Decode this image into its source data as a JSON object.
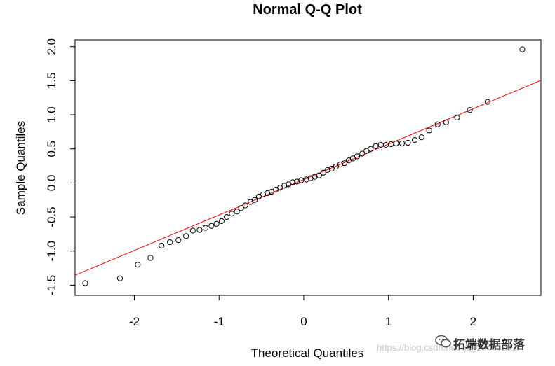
{
  "chart_data": {
    "type": "scatter",
    "title": "Normal Q-Q Plot",
    "xlabel": "Theoretical Quantiles",
    "ylabel": "Sample Quantiles",
    "xlim": [
      -2.7,
      2.8
    ],
    "ylim": [
      -1.65,
      2.1
    ],
    "xticks": [
      -2,
      -1,
      0,
      1,
      2
    ],
    "yticks": [
      -1.5,
      -1.0,
      -0.5,
      0.0,
      0.5,
      1.0,
      1.5,
      2.0
    ],
    "xtick_labels": [
      "-2",
      "-1",
      "0",
      "1",
      "2"
    ],
    "ytick_labels": [
      "-1.5",
      "-1.0",
      "-0.5",
      "0.0",
      "0.5",
      "1.0",
      "1.5",
      "2.0"
    ],
    "grid": false,
    "series": [
      {
        "marker": "open-circle",
        "color": "#000000",
        "x": [
          -2.58,
          -2.17,
          -1.96,
          -1.81,
          -1.68,
          -1.58,
          -1.48,
          -1.39,
          -1.31,
          -1.23,
          -1.16,
          -1.09,
          -1.03,
          -0.97,
          -0.91,
          -0.85,
          -0.79,
          -0.74,
          -0.69,
          -0.63,
          -0.58,
          -0.53,
          -0.48,
          -0.43,
          -0.38,
          -0.33,
          -0.28,
          -0.23,
          -0.18,
          -0.13,
          -0.08,
          -0.03,
          0.03,
          0.08,
          0.13,
          0.18,
          0.23,
          0.28,
          0.33,
          0.38,
          0.43,
          0.48,
          0.53,
          0.58,
          0.63,
          0.69,
          0.74,
          0.79,
          0.85,
          0.91,
          0.97,
          1.03,
          1.09,
          1.16,
          1.23,
          1.31,
          1.39,
          1.48,
          1.58,
          1.68,
          1.81,
          1.96,
          2.17,
          2.58
        ],
        "y": [
          -1.47,
          -1.4,
          -1.2,
          -1.1,
          -0.92,
          -0.87,
          -0.84,
          -0.78,
          -0.7,
          -0.69,
          -0.66,
          -0.63,
          -0.6,
          -0.56,
          -0.5,
          -0.45,
          -0.42,
          -0.37,
          -0.33,
          -0.28,
          -0.25,
          -0.2,
          -0.17,
          -0.15,
          -0.13,
          -0.1,
          -0.07,
          -0.04,
          -0.02,
          0.01,
          0.02,
          0.04,
          0.05,
          0.07,
          0.09,
          0.11,
          0.15,
          0.19,
          0.21,
          0.24,
          0.27,
          0.29,
          0.33,
          0.36,
          0.39,
          0.43,
          0.47,
          0.5,
          0.54,
          0.56,
          0.56,
          0.57,
          0.58,
          0.58,
          0.59,
          0.63,
          0.67,
          0.77,
          0.86,
          0.89,
          0.96,
          1.07,
          1.19,
          1.96
        ]
      }
    ],
    "reference_line": {
      "color": "#ff0000",
      "intercept": 0.05,
      "slope": 0.52
    }
  },
  "watermark": {
    "url_text": "https://blog.csdn.net/qq_19600291",
    "brand_text": "拓端数据部落",
    "logo_icon": "wechat-icon"
  }
}
